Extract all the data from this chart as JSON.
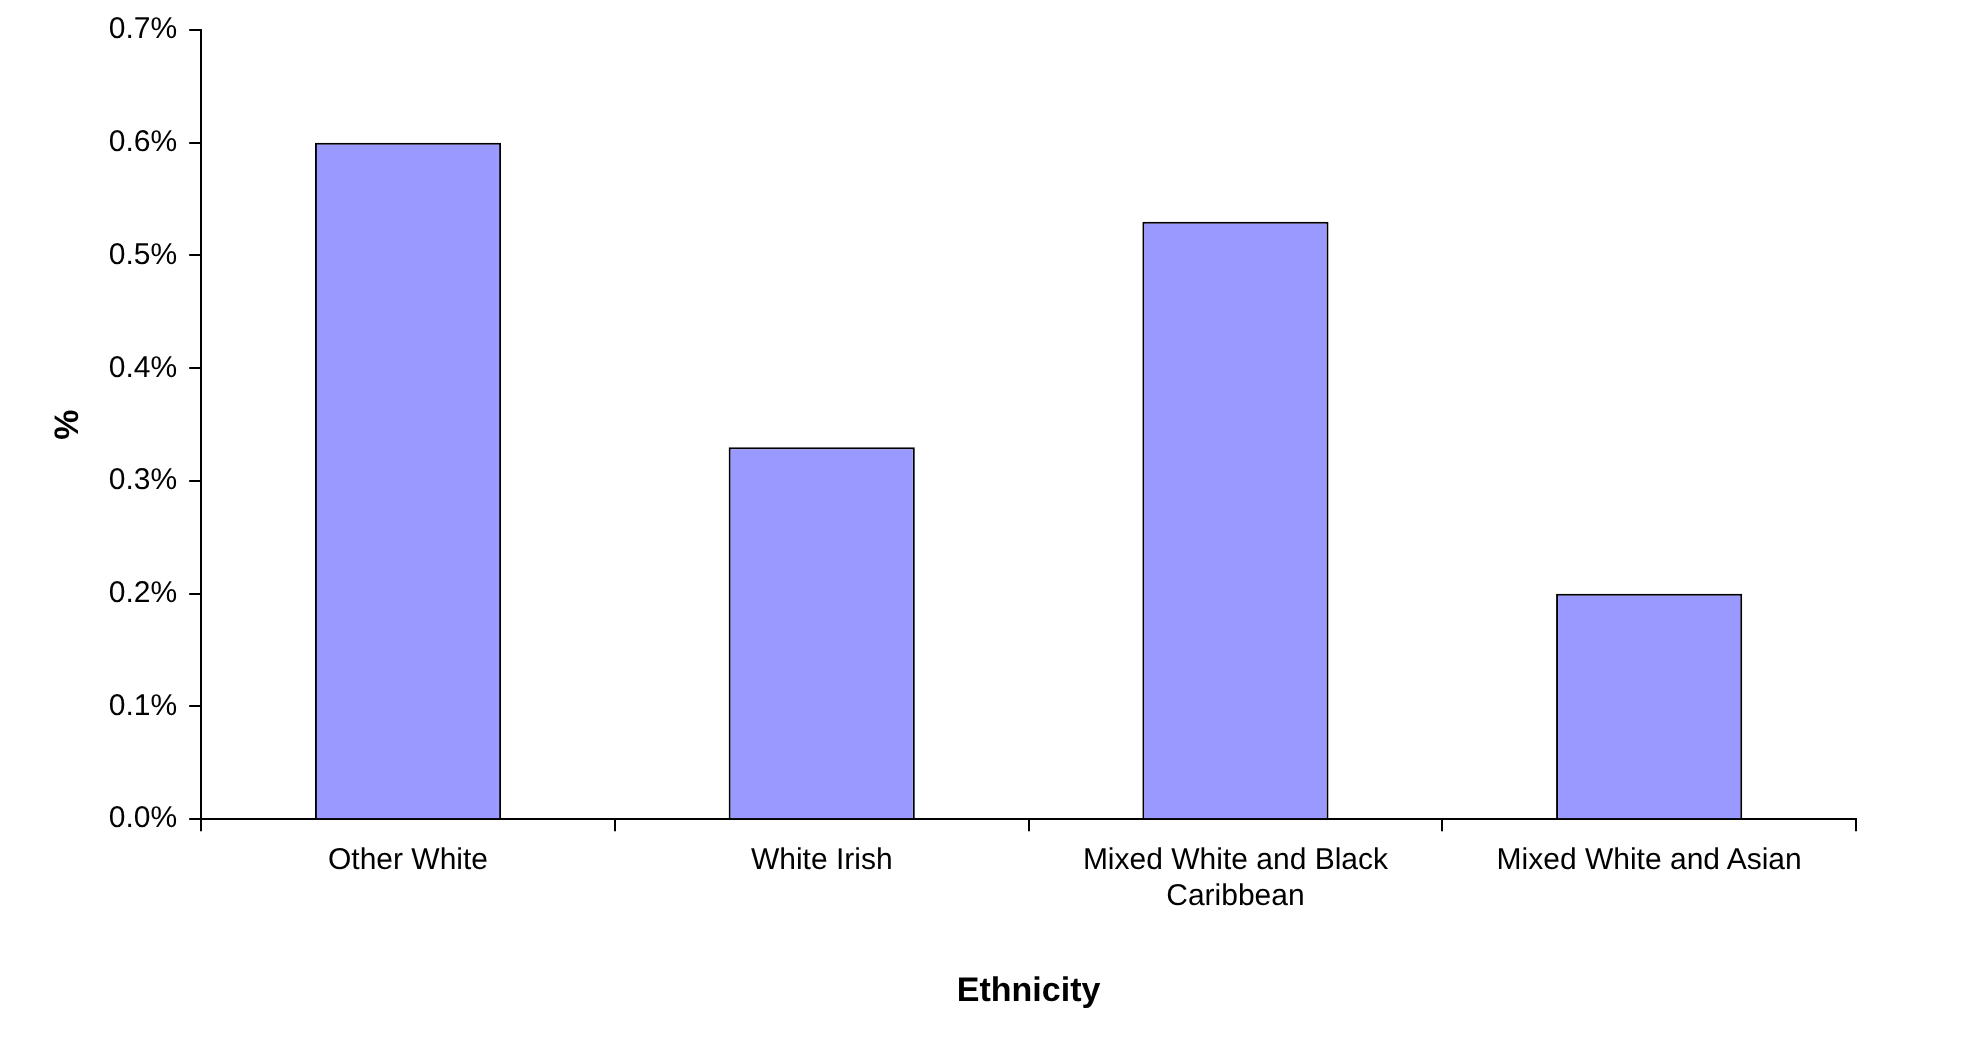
{
  "chart_data": {
    "type": "bar",
    "xlabel": "Ethnicity",
    "ylabel": "%",
    "categories": [
      "Other White",
      "White Irish",
      "Mixed White and Black Caribbean",
      "Mixed White and Asian"
    ],
    "values": [
      0.6,
      0.33,
      0.53,
      0.2
    ],
    "color": "#9999ff",
    "ylim": [
      0,
      0.7
    ],
    "yticks": [
      {
        "value": 0,
        "label": "0.0%"
      },
      {
        "value": 0.1,
        "label": "0.1%"
      },
      {
        "value": 0.2,
        "label": "0.2%"
      },
      {
        "value": 0.3,
        "label": "0.3%"
      },
      {
        "value": 0.4,
        "label": "0.4%"
      },
      {
        "value": 0.5,
        "label": "0.5%"
      },
      {
        "value": 0.6,
        "label": "0.6%"
      },
      {
        "value": 0.7,
        "label": "0.7%"
      }
    ],
    "grid": false,
    "legend": false
  }
}
